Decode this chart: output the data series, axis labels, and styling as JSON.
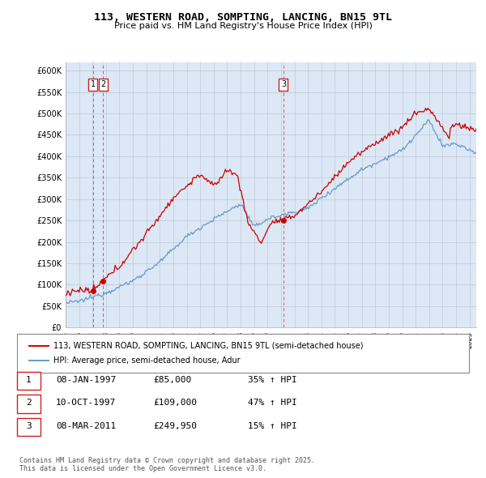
{
  "title": "113, WESTERN ROAD, SOMPTING, LANCING, BN15 9TL",
  "subtitle": "Price paid vs. HM Land Registry's House Price Index (HPI)",
  "legend_property": "113, WESTERN ROAD, SOMPTING, LANCING, BN15 9TL (semi-detached house)",
  "legend_hpi": "HPI: Average price, semi-detached house, Adur",
  "footer": "Contains HM Land Registry data © Crown copyright and database right 2025.\nThis data is licensed under the Open Government Licence v3.0.",
  "transactions": [
    {
      "num": 1,
      "date": "08-JAN-1997",
      "price": "£85,000",
      "hpi": "35% ↑ HPI",
      "year": 1997.03
    },
    {
      "num": 2,
      "date": "10-OCT-1997",
      "price": "£109,000",
      "hpi": "47% ↑ HPI",
      "year": 1997.78
    },
    {
      "num": 3,
      "date": "08-MAR-2011",
      "price": "£249,950",
      "hpi": "15% ↑ HPI",
      "year": 2011.18
    }
  ],
  "transaction_prices": [
    85000,
    109000,
    249950
  ],
  "transaction_years": [
    1997.03,
    1997.78,
    2011.18
  ],
  "ylim": [
    0,
    620000
  ],
  "xlim_start": 1995,
  "xlim_end": 2025.5,
  "background_color": "#dce8f5",
  "red_line_color": "#cc0000",
  "blue_line_color": "#6699cc",
  "grid_color": "#bbbbcc",
  "vline_color": "#ee3333"
}
